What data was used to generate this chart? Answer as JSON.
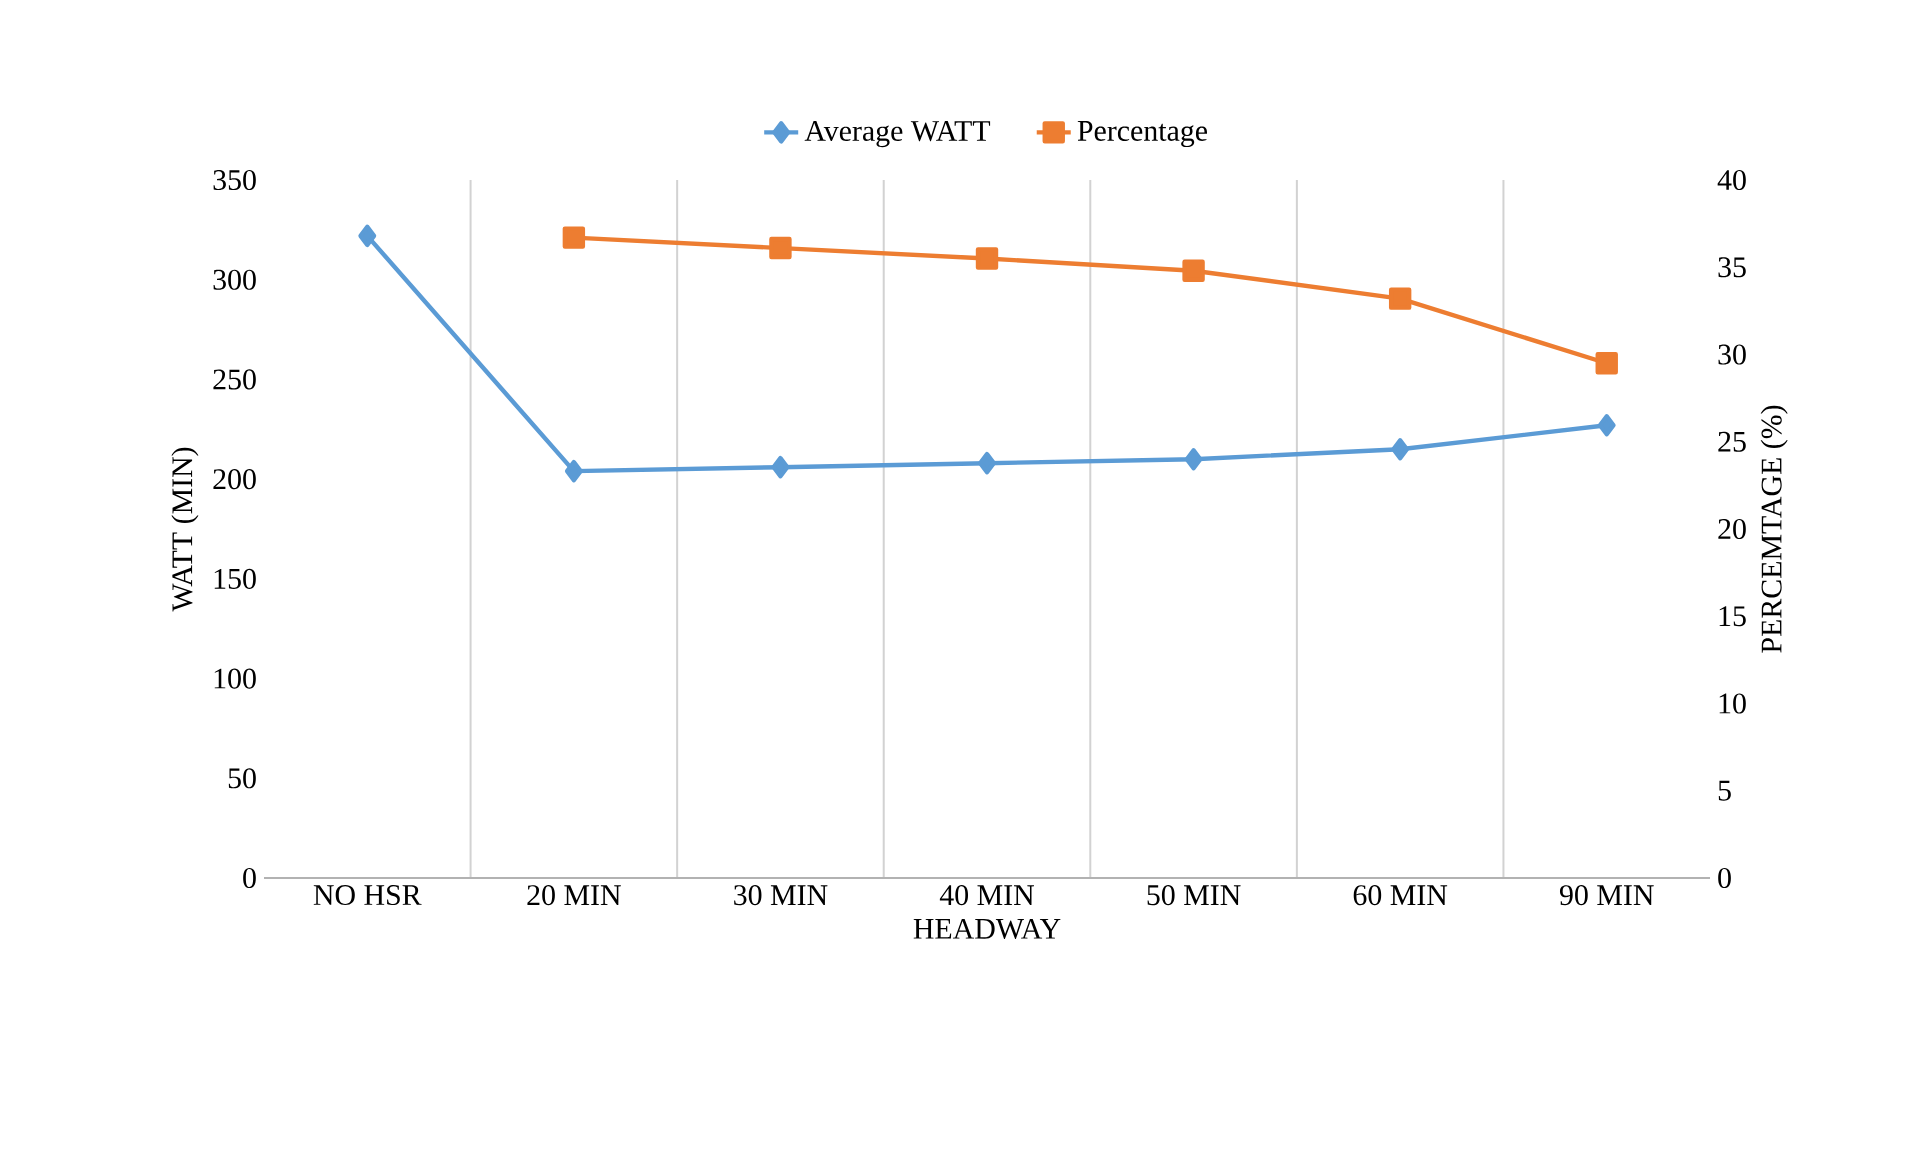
{
  "chart_data": {
    "type": "line",
    "xlabel": "HEADWAY",
    "ylabel": "WATT (MIN)",
    "y2label": "PERCEMTAGE (%)",
    "categories": [
      "NO HSR",
      "20 MIN",
      "30 MIN",
      "40 MIN",
      "50 MIN",
      "60 MIN",
      "90 MIN"
    ],
    "series": [
      {
        "name": "Average WATT",
        "color": "#5b9bd5",
        "marker": "diamond",
        "values": [
          322,
          204,
          206,
          208,
          210,
          215,
          227
        ]
      },
      {
        "name": "Percentage",
        "color": "#ed7d31",
        "marker": "square",
        "axis": "y2",
        "values": [
          null,
          36.7,
          36.1,
          35.5,
          34.8,
          33.2,
          29.5
        ]
      }
    ],
    "ylim": [
      0,
      350
    ],
    "yticks": [
      0,
      50,
      100,
      150,
      200,
      250,
      300,
      350
    ],
    "y2lim": [
      0,
      40
    ],
    "y2ticks": [
      0,
      5,
      10,
      15,
      20,
      25,
      30,
      35,
      40
    ],
    "grid": "x",
    "legend": "top"
  }
}
